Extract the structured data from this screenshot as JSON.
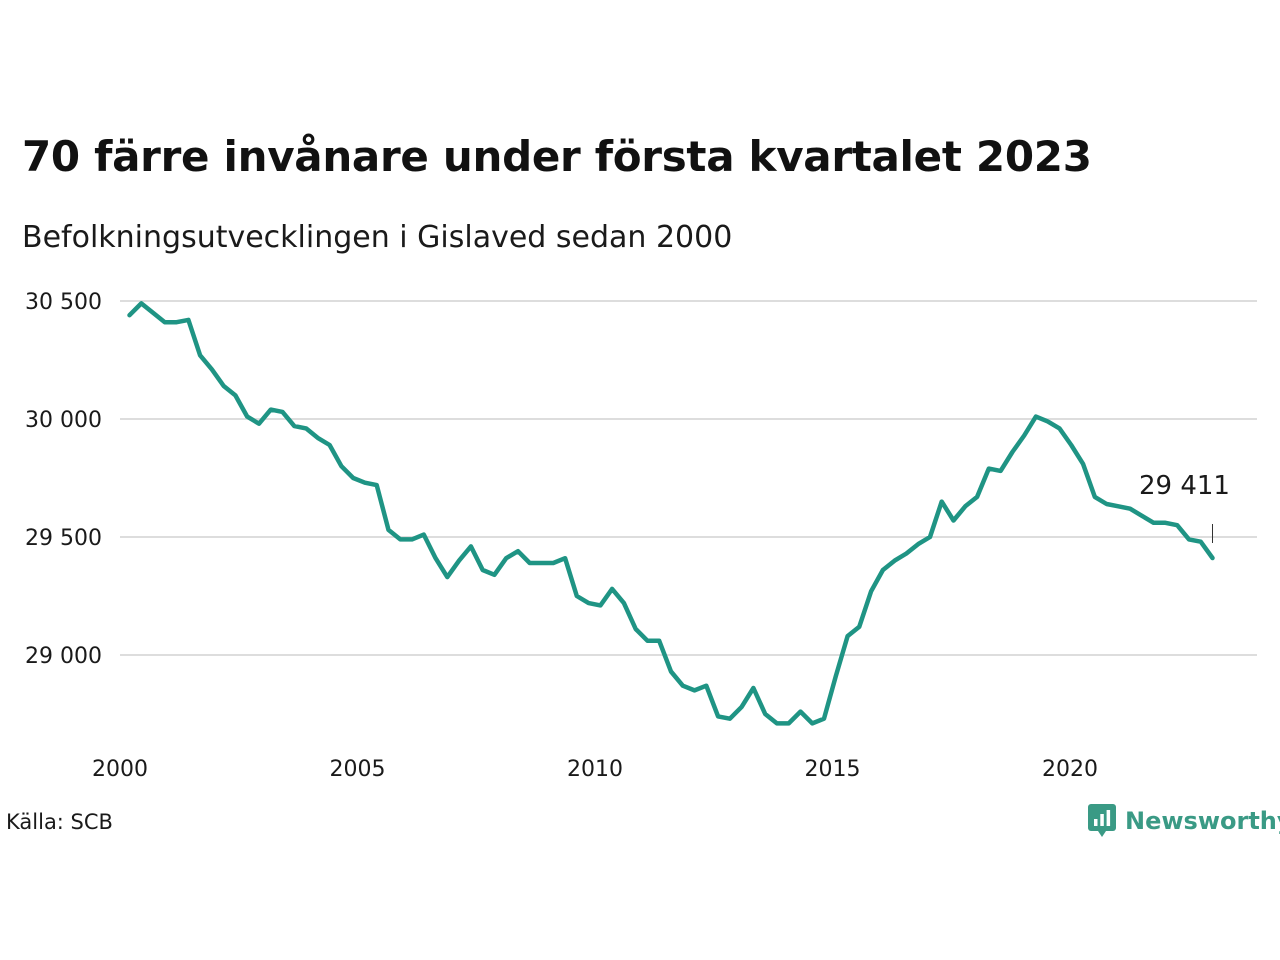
{
  "title": "70 färre invånare under första kvartalet 2023",
  "subtitle": "Befolkningsutvecklingen i Gislaved sedan 2000",
  "source": "Källa: SCB",
  "brand": {
    "name": "Newsworthy",
    "icon": "newsworthy-logo-icon",
    "color": "#3a9a85"
  },
  "chart_data": {
    "type": "line",
    "title": "70 färre invånare under första kvartalet 2023",
    "subtitle": "Befolkningsutvecklingen i Gislaved sedan 2000",
    "xlabel": "",
    "ylabel": "",
    "x_ticks": [
      2000,
      2005,
      2010,
      2015,
      2020
    ],
    "x_tick_labels": [
      "2000",
      "2005",
      "2010",
      "2015",
      "2020"
    ],
    "y_ticks": [
      29000,
      29500,
      30000,
      30500
    ],
    "y_tick_labels": [
      "29 000",
      "29 500",
      "30 000",
      "30 500"
    ],
    "xlim": [
      2000,
      2024.2
    ],
    "ylim": [
      28700,
      30530
    ],
    "grid": "horizontal",
    "line_color": "#1f9484",
    "grid_color": "#dddddd",
    "annotation": {
      "label": "29 411",
      "x": 2023.0,
      "y": 29411
    },
    "series": [
      {
        "values": [
          30440,
          30490,
          30450,
          30410,
          30410,
          30420,
          30270,
          30210,
          30140,
          30100,
          30010,
          29980,
          30040,
          30030,
          29970,
          29960,
          29920,
          29890,
          29800,
          29750,
          29730,
          29720,
          29530,
          29490,
          29490,
          29510,
          29410,
          29330,
          29400,
          29460,
          29360,
          29340,
          29410,
          29440,
          29390,
          29390,
          29390,
          29410,
          29250,
          29220,
          29210,
          29280,
          29220,
          29110,
          29060,
          29060,
          28930,
          28870,
          28850,
          28870,
          28740,
          28730,
          28780,
          28860,
          28750,
          28710,
          28710,
          28760,
          28710,
          28730,
          28910,
          29080,
          29120,
          29270,
          29360,
          29400,
          29430,
          29470,
          29500,
          29650,
          29570,
          29630,
          29670,
          29790,
          29780,
          29860,
          29930,
          30010,
          29990,
          29960,
          29890,
          29810,
          29670,
          29640,
          29630,
          29620,
          29590,
          29560,
          29560,
          29550,
          29490,
          29480,
          29411
        ]
      }
    ]
  }
}
